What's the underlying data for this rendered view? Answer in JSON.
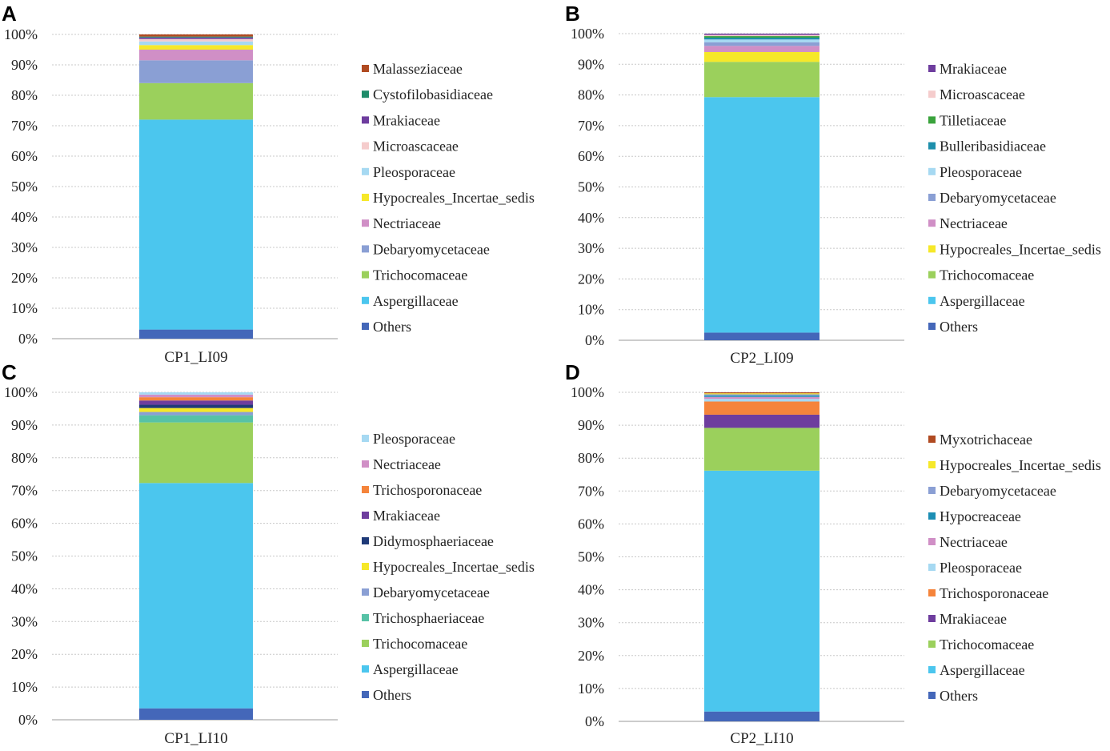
{
  "colors": {
    "Others": "#4467b9",
    "Aspergillaceae": "#4bc6ee",
    "Trichocomaceae": "#9bd05c",
    "Debaryomycetaceae": "#8a9fd4",
    "Nectriaceae": "#d08fc6",
    "Hypocreales_Incertae_sedis": "#f6e829",
    "Pleosporaceae": "#a6d9f2",
    "Microascaceae": "#f5cccc",
    "Mrakiaceae": "#6e3d9e",
    "Cystofilobasidiaceae": "#1e8c6a",
    "Malasseziaceae": "#b04a21",
    "Tilletiaceae": "#3aa33c",
    "Bulleribasidiaceae": "#1e8fab",
    "Trichosphaeriaceae": "#57c2a6",
    "Didymosphaeriaceae": "#1f3a78",
    "Trichosporonaceae": "#f5843b",
    "Hypocreaceae": "#1c8eb4",
    "Myxotrichaceae": "#b04a21"
  },
  "chart_data": [
    {
      "type": "bar",
      "stacked": true,
      "panel": "A",
      "categories": [
        "CP1_LI09"
      ],
      "yticks": [
        "0%",
        "10%",
        "20%",
        "30%",
        "40%",
        "50%",
        "60%",
        "70%",
        "80%",
        "90%",
        "100%"
      ],
      "ylim": [
        0,
        100
      ],
      "series": [
        {
          "name": "Others",
          "values": [
            3.0
          ]
        },
        {
          "name": "Aspergillaceae",
          "values": [
            69.0
          ]
        },
        {
          "name": "Trichocomaceae",
          "values": [
            12.0
          ]
        },
        {
          "name": "Debaryomycetaceae",
          "values": [
            7.5
          ]
        },
        {
          "name": "Nectriaceae",
          "values": [
            3.5
          ]
        },
        {
          "name": "Hypocreales_Incertae_sedis",
          "values": [
            1.5
          ]
        },
        {
          "name": "Pleosporaceae",
          "values": [
            1.2
          ]
        },
        {
          "name": "Microascaceae",
          "values": [
            0.8
          ]
        },
        {
          "name": "Mrakiaceae",
          "values": [
            0.5
          ]
        },
        {
          "name": "Cystofilobasidiaceae",
          "values": [
            0.3
          ]
        },
        {
          "name": "Malasseziaceae",
          "values": [
            0.7
          ]
        }
      ]
    },
    {
      "type": "bar",
      "stacked": true,
      "panel": "B",
      "categories": [
        "CP2_LI09"
      ],
      "yticks": [
        "0%",
        "10%",
        "20%",
        "30%",
        "40%",
        "50%",
        "60%",
        "70%",
        "80%",
        "90%",
        "100%"
      ],
      "ylim": [
        0,
        100
      ],
      "series": [
        {
          "name": "Others",
          "values": [
            2.5
          ]
        },
        {
          "name": "Aspergillaceae",
          "values": [
            76.8
          ]
        },
        {
          "name": "Trichocomaceae",
          "values": [
            11.5
          ]
        },
        {
          "name": "Hypocreales_Incertae_sedis",
          "values": [
            3.2
          ]
        },
        {
          "name": "Nectriaceae",
          "values": [
            2.0
          ]
        },
        {
          "name": "Debaryomycetaceae",
          "values": [
            1.2
          ]
        },
        {
          "name": "Pleosporaceae",
          "values": [
            0.9
          ]
        },
        {
          "name": "Bulleribasidiaceae",
          "values": [
            0.6
          ]
        },
        {
          "name": "Tilletiaceae",
          "values": [
            0.5
          ]
        },
        {
          "name": "Microascaceae",
          "values": [
            0.4
          ]
        },
        {
          "name": "Mrakiaceae",
          "values": [
            0.4
          ]
        }
      ]
    },
    {
      "type": "bar",
      "stacked": true,
      "panel": "C",
      "categories": [
        "CP1_LI10"
      ],
      "yticks": [
        "0%",
        "10%",
        "20%",
        "30%",
        "40%",
        "50%",
        "60%",
        "70%",
        "80%",
        "90%",
        "100%"
      ],
      "ylim": [
        0,
        100
      ],
      "series": [
        {
          "name": "Others",
          "values": [
            3.5
          ]
        },
        {
          "name": "Aspergillaceae",
          "values": [
            68.8
          ]
        },
        {
          "name": "Trichocomaceae",
          "values": [
            18.5
          ]
        },
        {
          "name": "Trichosphaeriaceae",
          "values": [
            2.2
          ]
        },
        {
          "name": "Debaryomycetaceae",
          "values": [
            1.0
          ]
        },
        {
          "name": "Hypocreales_Incertae_sedis",
          "values": [
            1.2
          ]
        },
        {
          "name": "Didymosphaeriaceae",
          "values": [
            1.0
          ]
        },
        {
          "name": "Mrakiaceae",
          "values": [
            1.3
          ]
        },
        {
          "name": "Trichosporonaceae",
          "values": [
            1.0
          ]
        },
        {
          "name": "Nectriaceae",
          "values": [
            0.8
          ]
        },
        {
          "name": "Pleosporaceae",
          "values": [
            0.7
          ]
        }
      ]
    },
    {
      "type": "bar",
      "stacked": true,
      "panel": "D",
      "categories": [
        "CP2_LI10"
      ],
      "yticks": [
        "0%",
        "10%",
        "20%",
        "30%",
        "40%",
        "50%",
        "60%",
        "70%",
        "80%",
        "90%",
        "100%"
      ],
      "ylim": [
        0,
        100
      ],
      "series": [
        {
          "name": "Others",
          "values": [
            3.0
          ]
        },
        {
          "name": "Aspergillaceae",
          "values": [
            73.2
          ]
        },
        {
          "name": "Trichocomaceae",
          "values": [
            13.0
          ]
        },
        {
          "name": "Mrakiaceae",
          "values": [
            4.0
          ]
        },
        {
          "name": "Trichosporonaceae",
          "values": [
            4.0
          ]
        },
        {
          "name": "Pleosporaceae",
          "values": [
            0.8
          ]
        },
        {
          "name": "Nectriaceae",
          "values": [
            0.6
          ]
        },
        {
          "name": "Hypocreaceae",
          "values": [
            0.4
          ]
        },
        {
          "name": "Debaryomycetaceae",
          "values": [
            0.4
          ]
        },
        {
          "name": "Hypocreales_Incertae_sedis",
          "values": [
            0.3
          ]
        },
        {
          "name": "Myxotrichaceae",
          "values": [
            0.3
          ]
        }
      ]
    }
  ]
}
